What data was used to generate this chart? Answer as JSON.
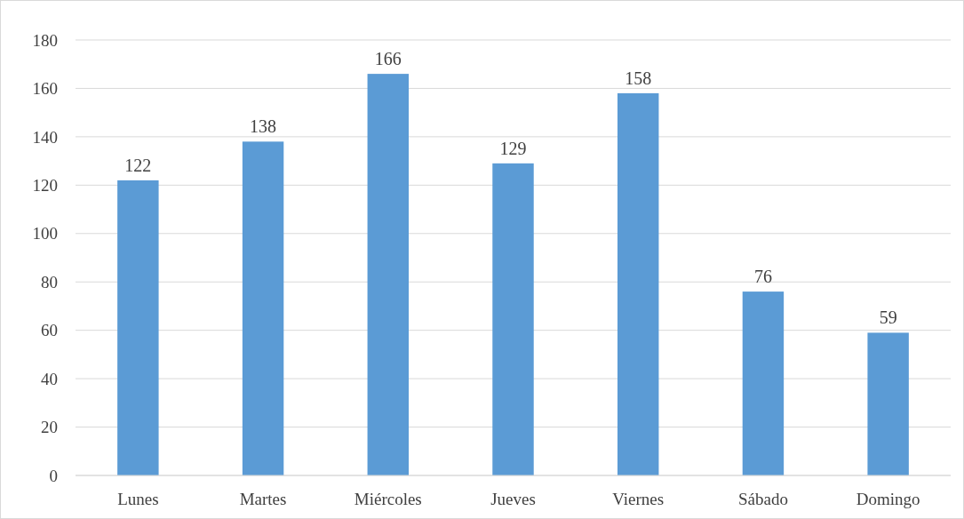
{
  "chart_data": {
    "type": "bar",
    "categories": [
      "Lunes",
      "Martes",
      "Miércoles",
      "Jueves",
      "Viernes",
      "Sábado",
      "Domingo"
    ],
    "values": [
      122,
      138,
      166,
      129,
      158,
      76,
      59
    ],
    "color": "#5b9bd5",
    "ylim": [
      0,
      180
    ],
    "yticks": [
      0,
      20,
      40,
      60,
      80,
      100,
      120,
      140,
      160,
      180
    ],
    "grid": "y",
    "data_labels": true
  }
}
